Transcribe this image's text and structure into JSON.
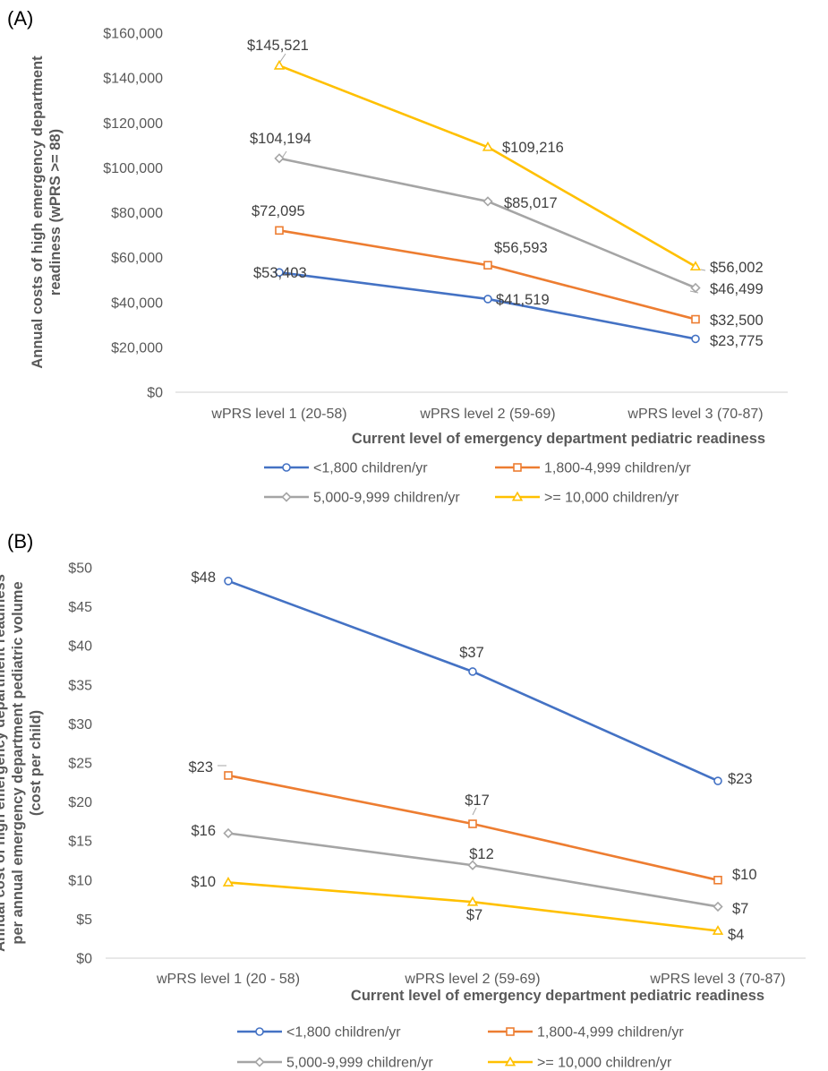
{
  "chart_data": [
    {
      "panel_label": "(A)",
      "type": "line",
      "categories": [
        "wPRS level 1 (20-58)",
        "wPRS level 2 (59-69)",
        "wPRS level 3 (70-87)"
      ],
      "xlabel": "Current level of emergency department pediatric readiness",
      "ylabel": [
        "Annual costs of high emergency department",
        "readiness (wPRS >= 88)"
      ],
      "ylim": [
        0,
        160000
      ],
      "yticks": [
        0,
        20000,
        40000,
        60000,
        80000,
        100000,
        120000,
        140000,
        160000
      ],
      "ytick_labels": [
        "$0",
        "$20,000",
        "$40,000",
        "$60,000",
        "$80,000",
        "$100,000",
        "$120,000",
        "$140,000",
        "$160,000"
      ],
      "grid": false,
      "legend_position": "bottom",
      "series": [
        {
          "name": "<1,800 children/yr",
          "color": "#4472C4",
          "marker": "circle",
          "values": [
            53403,
            41519,
            23775
          ],
          "labels": [
            "$53,403",
            "$41,519",
            "$23,775"
          ]
        },
        {
          "name": "1,800-4,999 children/yr",
          "color": "#ED7D31",
          "marker": "square",
          "values": [
            72095,
            56593,
            32500
          ],
          "labels": [
            "$72,095",
            "$56,593",
            "$32,500"
          ]
        },
        {
          "name": "5,000-9,999 children/yr",
          "color": "#A5A5A5",
          "marker": "diamond",
          "values": [
            104194,
            85017,
            46499
          ],
          "labels": [
            "$104,194",
            "$85,017",
            "$46,499"
          ]
        },
        {
          "name": ">= 10,000 children/yr",
          "color": "#FFC000",
          "marker": "triangle",
          "values": [
            145521,
            109216,
            56002
          ],
          "labels": [
            "$145,521",
            "$109,216",
            "$56,002"
          ]
        }
      ]
    },
    {
      "panel_label": "(B)",
      "type": "line",
      "categories": [
        "wPRS level 1 (20 - 58)",
        "wPRS level 2 (59-69)",
        "wPRS level 3 (70-87)"
      ],
      "xlabel": "Current level of emergency department pediatric readiness",
      "ylabel": [
        "Annual cost of high emergency department readiness",
        "per annual emergency department pediatric volume",
        "(cost per child)"
      ],
      "ylim": [
        0,
        50
      ],
      "yticks": [
        0,
        5,
        10,
        15,
        20,
        25,
        30,
        35,
        40,
        45,
        50
      ],
      "ytick_labels": [
        "$0",
        "$5",
        "$10",
        "$15",
        "$20",
        "$25",
        "$30",
        "$35",
        "$40",
        "$45",
        "$50"
      ],
      "grid": false,
      "legend_position": "bottom",
      "series": [
        {
          "name": "<1,800 children/yr",
          "color": "#4472C4",
          "marker": "circle",
          "values": [
            48.3,
            36.7,
            22.7
          ],
          "labels": [
            "$48",
            "$37",
            "$23"
          ]
        },
        {
          "name": "1,800-4,999 children/yr",
          "color": "#ED7D31",
          "marker": "square",
          "values": [
            23.4,
            17.2,
            10.0
          ],
          "labels": [
            "$23",
            "$17",
            "$10"
          ]
        },
        {
          "name": "5,000-9,999 children/yr",
          "color": "#A5A5A5",
          "marker": "diamond",
          "values": [
            16.0,
            11.9,
            6.6
          ],
          "labels": [
            "$16",
            "$12",
            "$7"
          ]
        },
        {
          "name": ">= 10,000 children/yr",
          "color": "#FFC000",
          "marker": "triangle",
          "values": [
            9.7,
            7.2,
            3.5
          ],
          "labels": [
            "$10",
            "$7",
            "$4"
          ]
        }
      ]
    }
  ]
}
